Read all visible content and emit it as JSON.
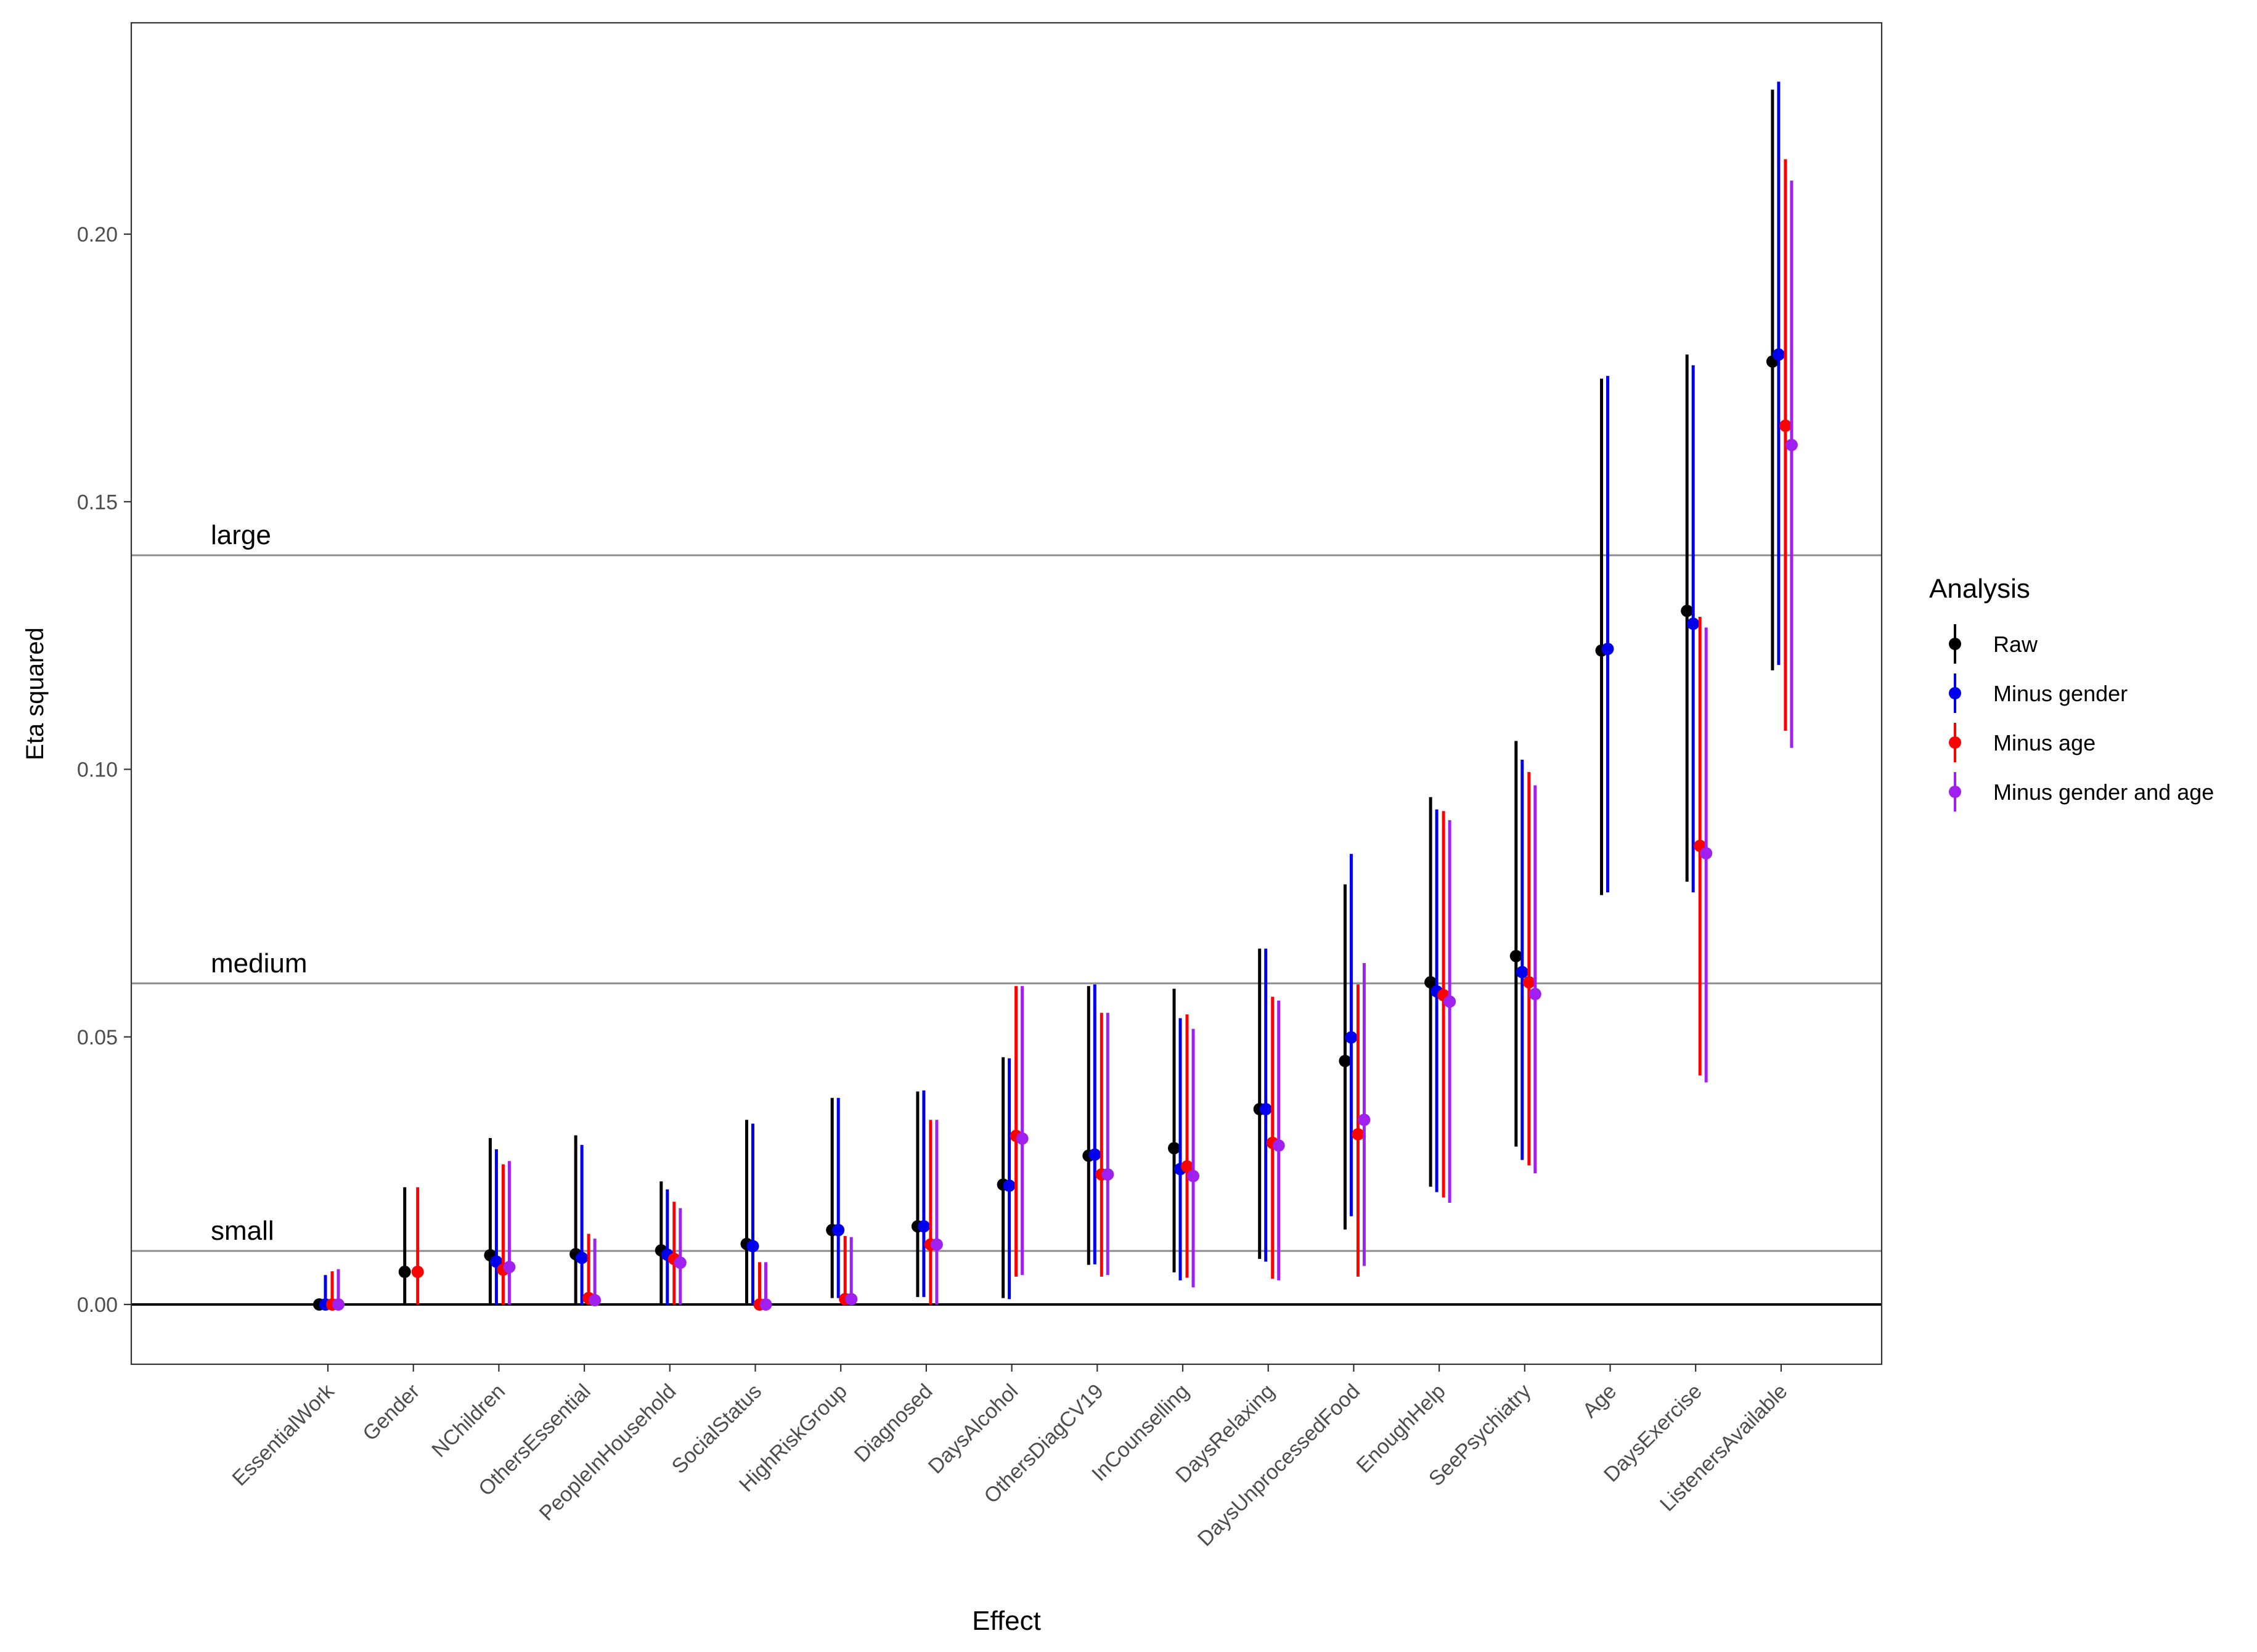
{
  "chart_data": {
    "type": "pointrange",
    "xlabel": "Effect",
    "ylabel": "Eta squared",
    "ylim": [
      -0.011,
      0.24
    ],
    "yticks": [
      0.0,
      0.05,
      0.1,
      0.15,
      0.2
    ],
    "ytick_labels": [
      "0.00",
      "0.05",
      "0.10",
      "0.15",
      "0.20"
    ],
    "reference_lines": [
      {
        "label": "small",
        "value": 0.01
      },
      {
        "label": "medium",
        "value": 0.06
      },
      {
        "label": "large",
        "value": 0.14
      }
    ],
    "zero_line": 0.0,
    "categories": [
      "EssentialWork",
      "Gender",
      "NChildren",
      "OthersEssential",
      "PeopleInHousehold",
      "SocialStatus",
      "HighRiskGroup",
      "Diagnosed",
      "DaysAlcohol",
      "OthersDiagCV19",
      "InCounselling",
      "DaysRelaxing",
      "DaysUnprocessedFood",
      "EnoughHelp",
      "SeePsychiatry",
      "Age",
      "DaysExercise",
      "ListenersAvailable"
    ],
    "legend": {
      "title": "Analysis",
      "position": "right"
    },
    "series": [
      {
        "name": "Raw",
        "color": "#000000",
        "values": [
          0.0,
          0.0061,
          0.0092,
          0.0094,
          0.0101,
          0.0113,
          0.0139,
          0.0146,
          0.0224,
          0.0278,
          0.0292,
          0.0365,
          0.0455,
          0.0602,
          0.0651,
          0.1222,
          0.1296,
          0.1762
        ],
        "lower": [
          0.0,
          0.0,
          0.0,
          0.0,
          0.0,
          0.0,
          0.0012,
          0.0014,
          0.0012,
          0.0074,
          0.006,
          0.0085,
          0.014,
          0.022,
          0.0295,
          0.0765,
          0.079,
          0.1185
        ],
        "upper": [
          0.0,
          0.0219,
          0.0311,
          0.0316,
          0.023,
          0.0345,
          0.0386,
          0.0398,
          0.0462,
          0.0595,
          0.059,
          0.0665,
          0.0785,
          0.0948,
          0.1053,
          0.173,
          0.1775,
          0.227
        ]
      },
      {
        "name": "Minus gender",
        "color": "#0000ee",
        "values": [
          0.0,
          null,
          0.008,
          0.0087,
          0.0093,
          0.0109,
          0.0139,
          0.0146,
          0.0222,
          0.028,
          0.0253,
          0.0365,
          0.0499,
          0.0585,
          0.0621,
          0.1225,
          0.1272,
          0.1775
        ],
        "lower": [
          0.0,
          null,
          0.0,
          0.0,
          0.0,
          0.0,
          0.0012,
          0.0014,
          0.001,
          0.0075,
          0.0045,
          0.008,
          0.0165,
          0.021,
          0.027,
          0.077,
          0.077,
          0.1195
        ],
        "upper": [
          0.0055,
          null,
          0.029,
          0.0298,
          0.0215,
          0.0338,
          0.0386,
          0.04,
          0.046,
          0.0598,
          0.0535,
          0.0665,
          0.0842,
          0.0925,
          0.1018,
          0.1735,
          0.1755,
          0.2285
        ]
      },
      {
        "name": "Minus age",
        "color": "#ff0000",
        "values": [
          0.0,
          0.0061,
          0.0065,
          0.0012,
          0.0085,
          0.0,
          0.001,
          0.0112,
          0.0315,
          0.0243,
          0.0258,
          0.0302,
          0.0318,
          0.0578,
          0.0602,
          null,
          0.0857,
          0.1642
        ],
        "lower": [
          0.0,
          0.0,
          0.0,
          0.0,
          0.0,
          0.0,
          0.0,
          0.0,
          0.0052,
          0.0052,
          0.005,
          0.0048,
          0.0052,
          0.02,
          0.026,
          null,
          0.0428,
          0.1072
        ],
        "upper": [
          0.0062,
          0.0219,
          0.0262,
          0.0132,
          0.0192,
          0.0079,
          0.0128,
          0.0345,
          0.0595,
          0.0545,
          0.0542,
          0.0575,
          0.0598,
          0.0922,
          0.0995,
          null,
          0.1285,
          0.214
        ]
      },
      {
        "name": "Minus gender and age",
        "color": "#a020f0",
        "values": [
          0.0,
          null,
          0.007,
          0.0008,
          0.0078,
          0.0,
          0.001,
          0.0112,
          0.031,
          0.0243,
          0.024,
          0.0297,
          0.0345,
          0.0566,
          0.058,
          null,
          0.0843,
          0.1606
        ],
        "lower": [
          0.0,
          null,
          0.0,
          0.0,
          0.0,
          0.0,
          0.0,
          0.0,
          0.0055,
          0.0055,
          0.0032,
          0.0045,
          0.0072,
          0.019,
          0.0245,
          null,
          0.0415,
          0.104
        ],
        "upper": [
          0.0066,
          null,
          0.0268,
          0.0123,
          0.018,
          0.0079,
          0.0126,
          0.0345,
          0.0595,
          0.0545,
          0.0515,
          0.0568,
          0.0638,
          0.0905,
          0.097,
          null,
          0.1265,
          0.21
        ]
      }
    ]
  }
}
